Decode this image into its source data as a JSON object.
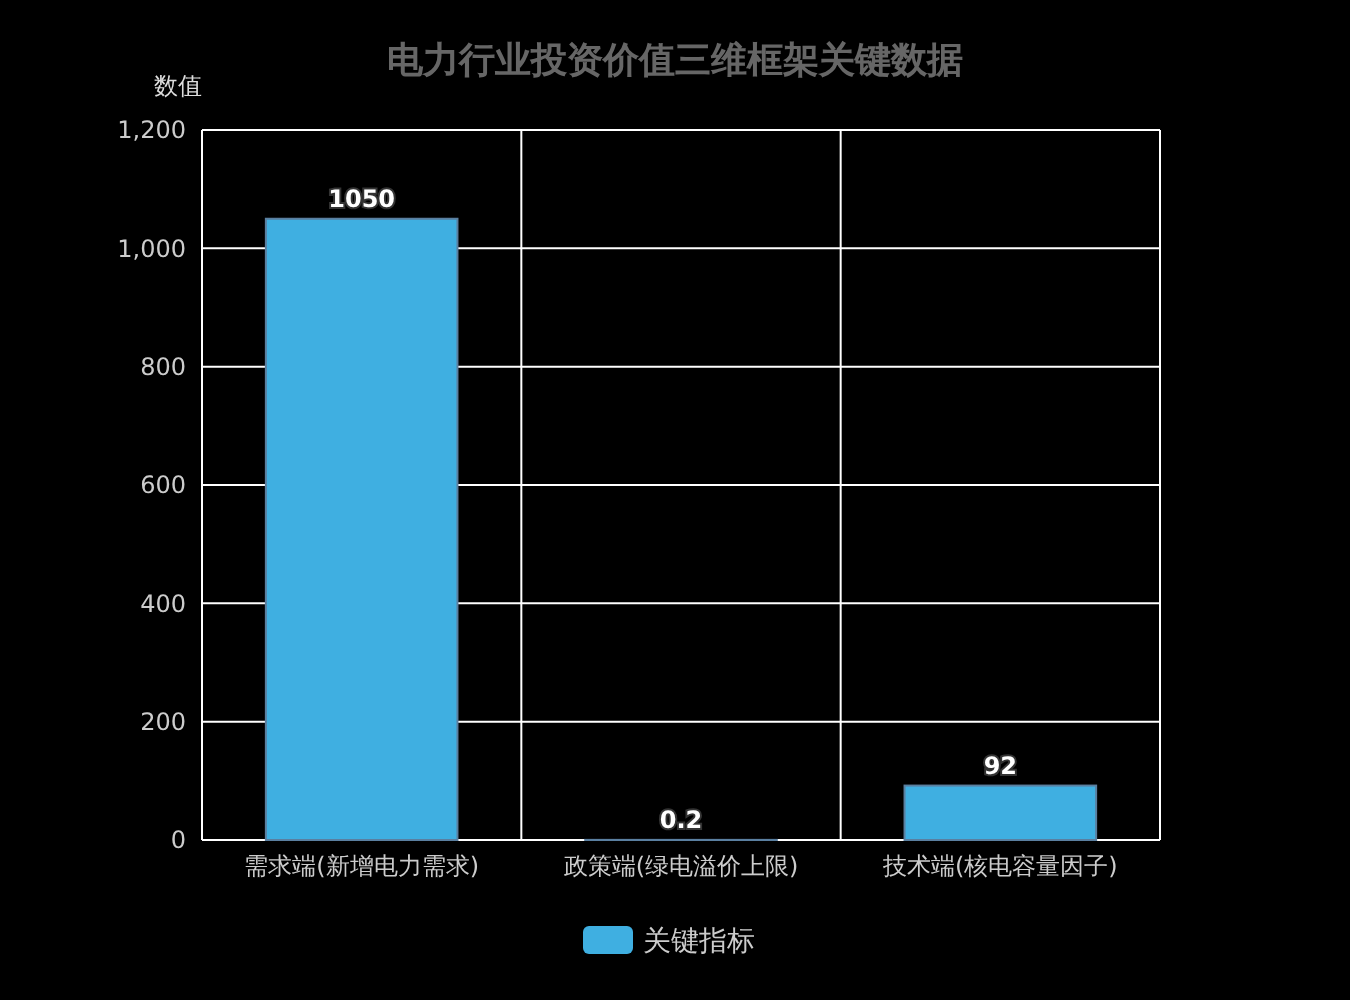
{
  "chart_data": {
    "type": "bar",
    "title": "电力行业投资价值三维框架关键数据",
    "ylabel": "数值",
    "categories": [
      "需求端(新增电力需求)",
      "政策端(绿电溢价上限)",
      "技术端(核电容量因子)"
    ],
    "series": [
      {
        "name": "关键指标",
        "color": "#3fafe1",
        "values": [
          1050,
          0.2,
          92
        ]
      }
    ],
    "ylim": [
      0,
      1200
    ],
    "yticks": [
      0,
      200,
      400,
      600,
      800,
      {
        "value": 1000,
        "label": "1,000"
      },
      {
        "value": 1200,
        "label": "1,200"
      }
    ],
    "grid": true,
    "legend": "bottom",
    "data_labels": true
  }
}
